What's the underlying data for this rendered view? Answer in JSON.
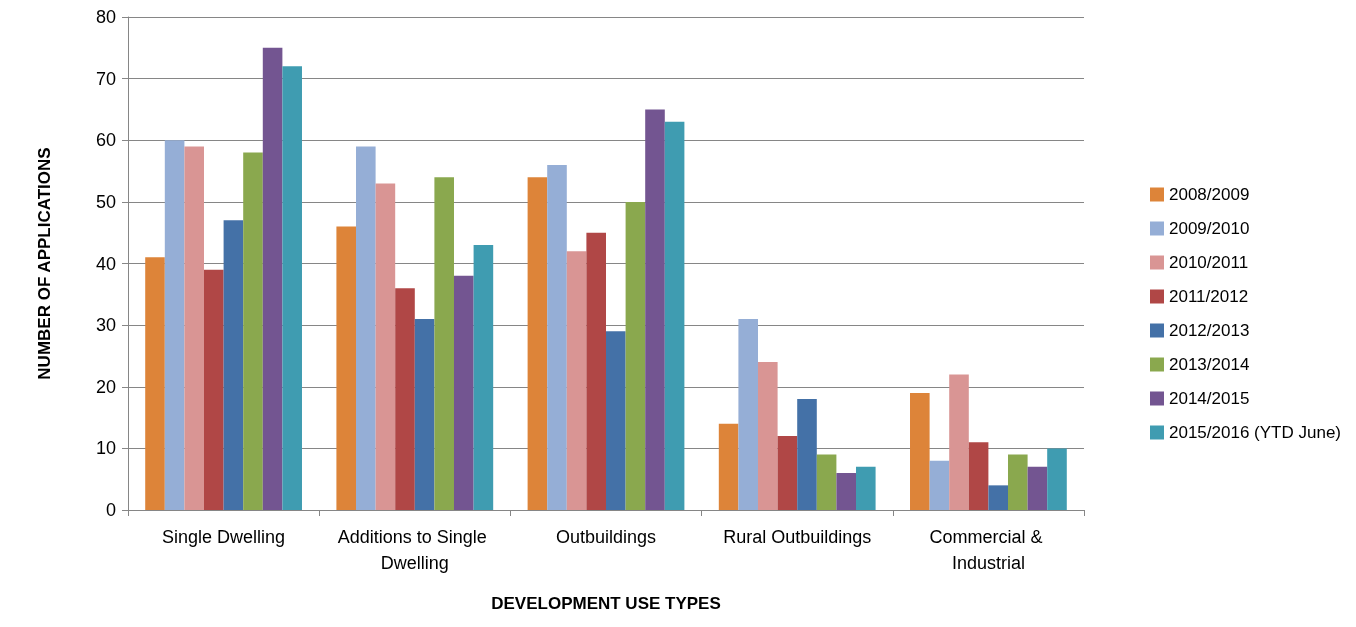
{
  "chart_data": {
    "type": "bar",
    "xlabel": "DEVELOPMENT USE TYPES",
    "ylabel": "NUMBER OF APPLICATIONS",
    "categories": [
      "Single Dwelling",
      "Additions to Single Dwelling",
      "Outbuildings",
      "Rural Outbuildings",
      "Commercial & Industrial"
    ],
    "series": [
      {
        "name": "2008/2009",
        "color": "#dd8439",
        "values": [
          41,
          46,
          54,
          14,
          19
        ]
      },
      {
        "name": "2009/2010",
        "color": "#95aed6",
        "values": [
          60,
          59,
          56,
          31,
          8
        ]
      },
      {
        "name": "2010/2011",
        "color": "#d99594",
        "values": [
          59,
          53,
          42,
          24,
          22
        ]
      },
      {
        "name": "2011/2012",
        "color": "#b04746",
        "values": [
          39,
          36,
          45,
          12,
          11
        ]
      },
      {
        "name": "2012/2013",
        "color": "#4471a7",
        "values": [
          47,
          31,
          29,
          18,
          4
        ]
      },
      {
        "name": "2013/2014",
        "color": "#8aa84e",
        "values": [
          58,
          54,
          50,
          9,
          9
        ]
      },
      {
        "name": "2014/2015",
        "color": "#735591",
        "values": [
          75,
          38,
          65,
          6,
          7
        ]
      },
      {
        "name": "2015/2016 (YTD June)",
        "color": "#3f9cb1",
        "values": [
          72,
          43,
          63,
          7,
          10
        ]
      }
    ],
    "ylim": [
      0,
      80
    ],
    "yticks": [
      0,
      10,
      20,
      30,
      40,
      50,
      60,
      70,
      80
    ],
    "grid": "y",
    "legend": "right"
  }
}
